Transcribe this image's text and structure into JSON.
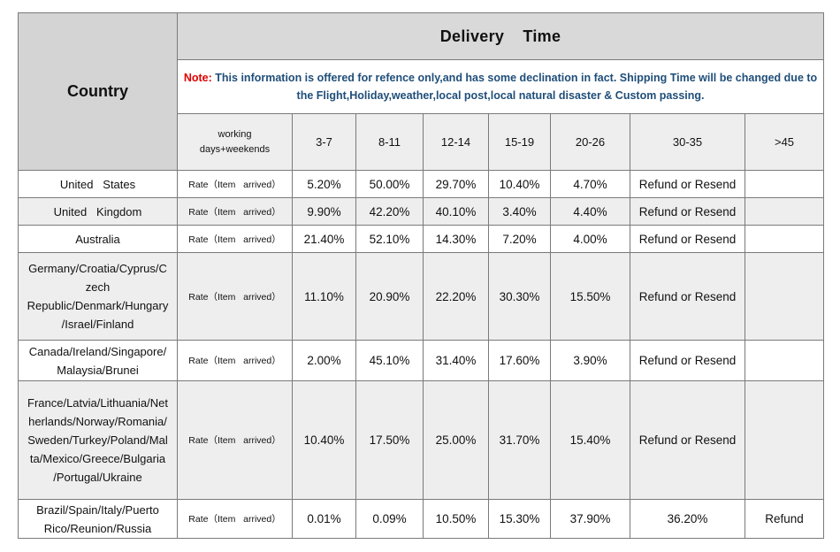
{
  "table": {
    "country_header": "Country",
    "delivery_header": "Delivery    Time",
    "note": {
      "label": "Note:",
      "text": " This information is offered for refence only,and has some declination in fact. Shipping Time will be changed due to the Flight,Holiday,weather,local post,local natural disaster & Custom passing."
    },
    "working_days_label": "working\ndays+weekends",
    "columns": [
      "3-7",
      "8-11",
      "12-14",
      "15-19",
      "20-26",
      "30-35",
      ">45"
    ],
    "rows": [
      {
        "country": "United   States",
        "rate": "Rate（Item   arrived）",
        "values": [
          "5.20%",
          "50.00%",
          "29.70%",
          "10.40%",
          "4.70%"
        ],
        "col_30_35": "Refund or Resend",
        "col_45": ""
      },
      {
        "country": "United   Kingdom",
        "rate": "Rate（Item   arrived）",
        "values": [
          "9.90%",
          "42.20%",
          "40.10%",
          "3.40%",
          "4.40%"
        ],
        "col_30_35": "Refund or Resend",
        "col_45": ""
      },
      {
        "country": "Australia",
        "rate": "Rate（Item   arrived）",
        "values": [
          "21.40%",
          "52.10%",
          "14.30%",
          "7.20%",
          "4.00%"
        ],
        "col_30_35": "Refund or Resend",
        "col_45": ""
      },
      {
        "country": "Germany/Croatia/Cyprus/C\nzech\nRepublic/Denmark/Hungary\n/Israel/Finland",
        "rate": "Rate（Item   arrived）",
        "values": [
          "11.10%",
          "20.90%",
          "22.20%",
          "30.30%",
          "15.50%"
        ],
        "col_30_35": "Refund or Resend",
        "col_45": ""
      },
      {
        "country": "Canada/Ireland/Singapore/\nMalaysia/Brunei",
        "rate": "Rate（Item   arrived）",
        "values": [
          "2.00%",
          "45.10%",
          "31.40%",
          "17.60%",
          "3.90%"
        ],
        "col_30_35": "Refund or Resend",
        "col_45": ""
      },
      {
        "country": "France/Latvia/Lithuania/Net\nherlands/Norway/Romania/\nSweden/Turkey/Poland/Mal\nta/Mexico/Greece/Bulgaria\n/Portugal/Ukraine",
        "rate": "Rate（Item   arrived）",
        "values": [
          "10.40%",
          "17.50%",
          "25.00%",
          "31.70%",
          "15.40%"
        ],
        "col_30_35": "Refund or Resend",
        "col_45": ""
      },
      {
        "country": "Brazil/Spain/Italy/Puerto\nRico/Reunion/Russia",
        "rate": "Rate（Item   arrived）",
        "values": [
          "0.01%",
          "0.09%",
          "10.50%",
          "15.30%",
          "37.90%"
        ],
        "col_30_35": "36.20%",
        "col_45": "Refund"
      }
    ]
  }
}
